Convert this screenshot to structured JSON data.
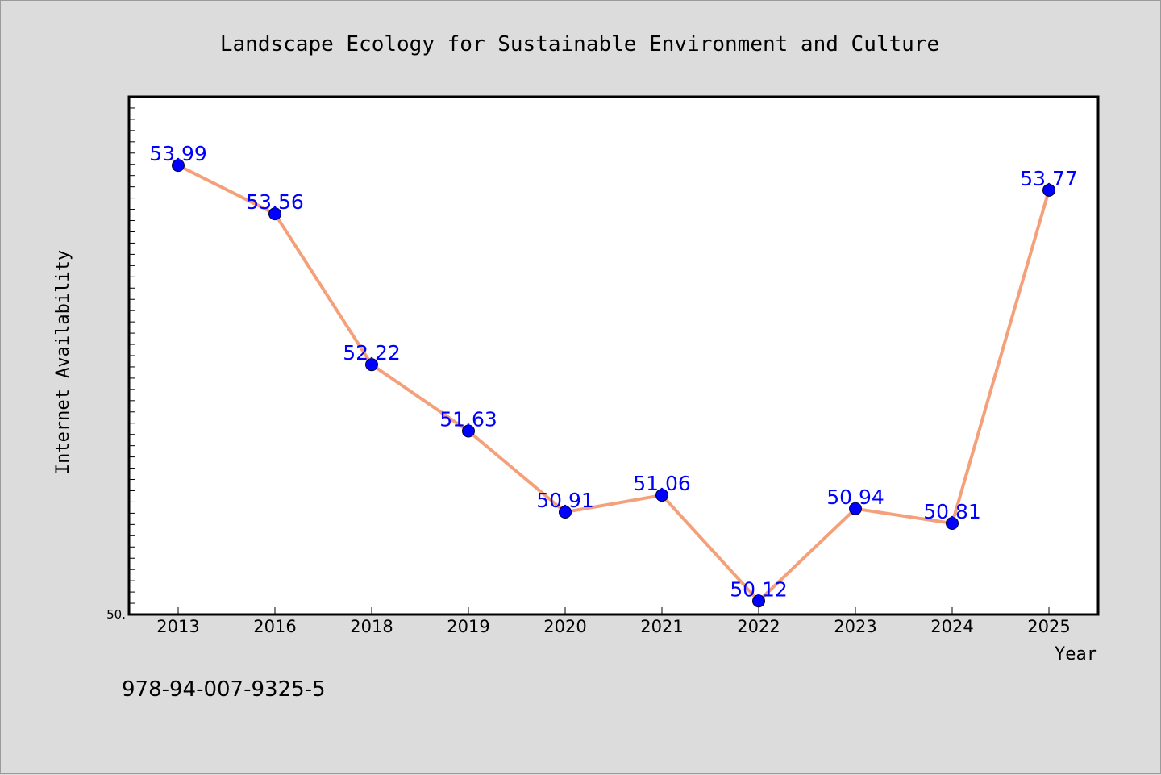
{
  "chart_data": {
    "type": "line",
    "title": "Landscape Ecology for Sustainable Environment and Culture",
    "xlabel": "Year",
    "ylabel": "Internet Availability",
    "categories": [
      "2013",
      "2016",
      "2018",
      "2019",
      "2020",
      "2021",
      "2022",
      "2023",
      "2024",
      "2025"
    ],
    "values": [
      53.99,
      53.56,
      52.22,
      51.63,
      50.91,
      51.06,
      50.12,
      50.94,
      50.81,
      53.77
    ],
    "value_labels": [
      "53.99",
      "53.56",
      "52.22",
      "51.63",
      "50.91",
      "51.06",
      "50.12",
      "50.94",
      "50.81",
      "53.77"
    ],
    "ylim": [
      50.0,
      54.6
    ],
    "yticks_labeled": [
      {
        "value": 50.0,
        "label": "50."
      }
    ],
    "line_color": "#f4a07a",
    "marker_color": "#0000ff",
    "label_color": "#0000ff",
    "grid": false,
    "legend": false
  },
  "footer": {
    "isbn": "978-94-007-9325-5"
  }
}
